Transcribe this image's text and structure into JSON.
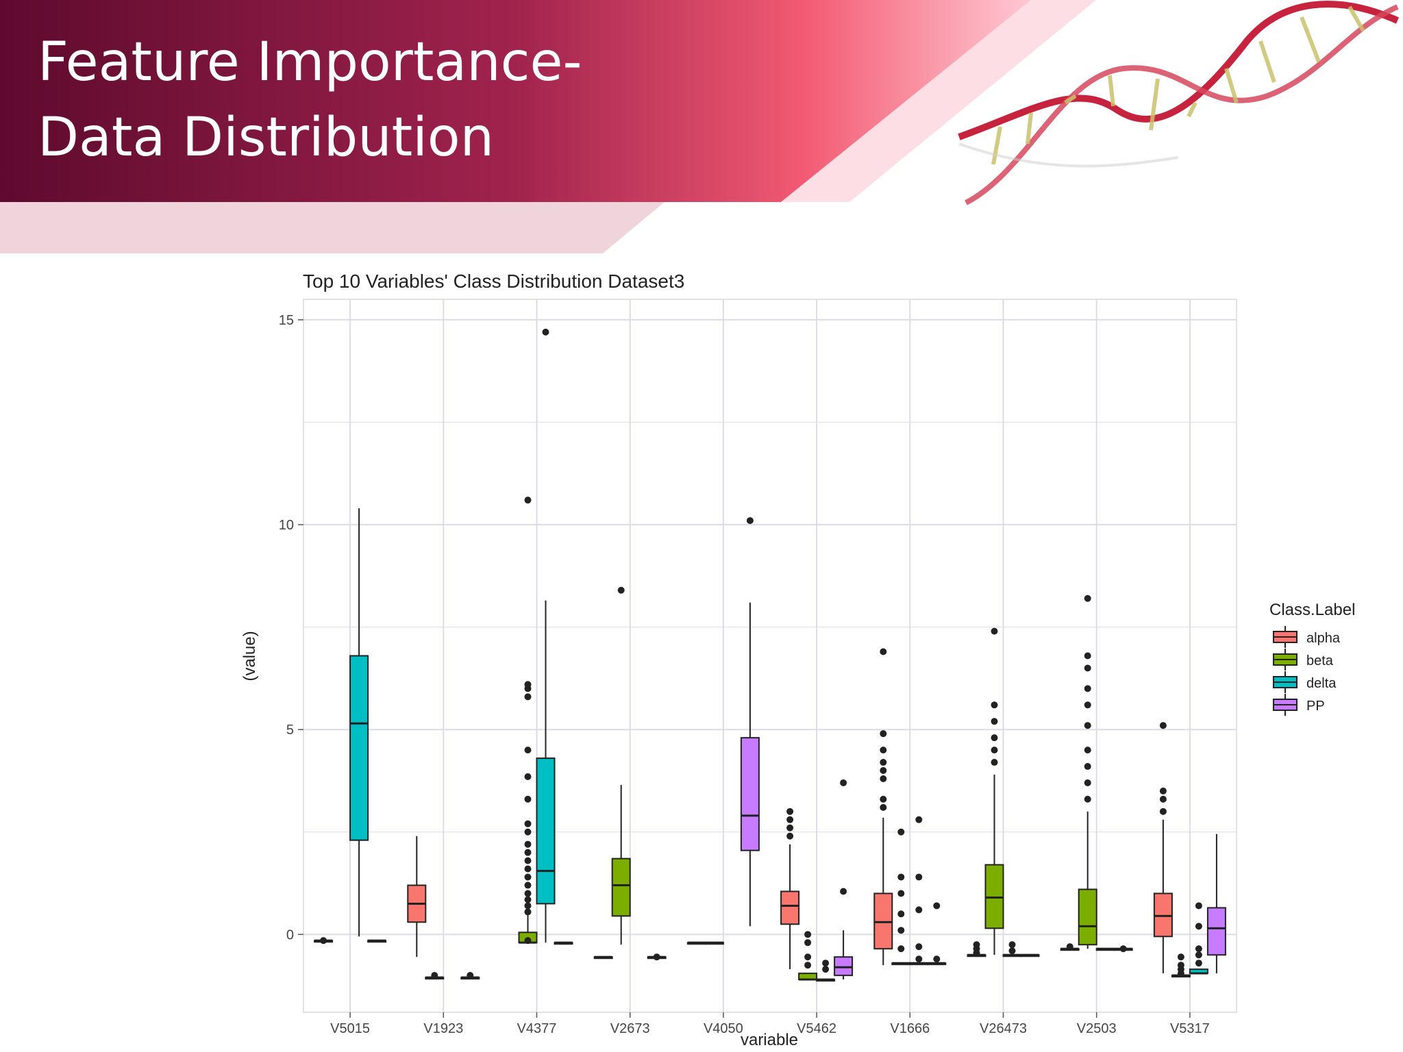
{
  "slide": {
    "title_line1": "Feature Importance-",
    "title_line2": "Data Distribution"
  },
  "colors": {
    "header_dark": "#5e0a2e",
    "header_mid": "#b02a52",
    "header_light": "#f25a72",
    "band_pink": "#efd4dc",
    "alpha": "#f8766d",
    "beta": "#7cae00",
    "delta": "#00bfc4",
    "PP": "#c77cff",
    "grid": "#dedae6"
  },
  "chart_data": {
    "type": "box",
    "title": "Top 10 Variables' Class Distribution Dataset3",
    "xlabel": "variable",
    "ylabel": "(value)",
    "ylim": [
      -1.9,
      15.5
    ],
    "yticks": [
      0,
      5,
      10,
      15
    ],
    "grid": true,
    "legend": {
      "title": "Class.Label",
      "position": "right",
      "entries": [
        "alpha",
        "beta",
        "delta",
        "PP"
      ]
    },
    "categories": [
      "V5015",
      "V1923",
      "V4377",
      "V2673",
      "V4050",
      "V5462",
      "V1666",
      "V26473",
      "V2503",
      "V5317"
    ],
    "boxes": [
      {
        "category": "V5015",
        "class": "alpha",
        "q1": -0.15,
        "median": -0.15,
        "q3": -0.15,
        "whisker_low": -0.15,
        "whisker_high": -0.15,
        "outliers": [
          -0.15
        ]
      },
      {
        "category": "V5015",
        "class": "delta",
        "q1": 2.3,
        "median": 5.15,
        "q3": 6.8,
        "whisker_low": -0.05,
        "whisker_high": 10.4,
        "outliers": []
      },
      {
        "category": "V5015",
        "class": "PP",
        "q1": -0.15,
        "median": -0.15,
        "q3": -0.15,
        "whisker_low": -0.15,
        "whisker_high": -0.15,
        "outliers": []
      },
      {
        "category": "V1923",
        "class": "alpha",
        "q1": 0.3,
        "median": 0.75,
        "q3": 1.2,
        "whisker_low": -0.55,
        "whisker_high": 2.4,
        "outliers": []
      },
      {
        "category": "V1923",
        "class": "beta",
        "q1": -1.05,
        "median": -1.05,
        "q3": -1.05,
        "whisker_low": -1.05,
        "whisker_high": -1.05,
        "outliers": [
          -1.0
        ]
      },
      {
        "category": "V1923",
        "class": "PP",
        "q1": -1.05,
        "median": -1.05,
        "q3": -1.05,
        "whisker_low": -1.05,
        "whisker_high": -1.05,
        "outliers": [
          -1.0
        ]
      },
      {
        "category": "V4377",
        "class": "beta",
        "q1": -0.2,
        "median": -0.2,
        "q3": 0.05,
        "whisker_low": -0.2,
        "whisker_high": 0.5,
        "outliers": [
          -0.15,
          0.55,
          0.7,
          0.85,
          1.0,
          1.2,
          1.4,
          1.6,
          1.8,
          2.0,
          2.2,
          2.5,
          2.7,
          3.3,
          3.85,
          4.5,
          5.8,
          6.0,
          6.1,
          10.6
        ]
      },
      {
        "category": "V4377",
        "class": "delta",
        "q1": 0.75,
        "median": 1.55,
        "q3": 4.3,
        "whisker_low": -0.2,
        "whisker_high": 8.15,
        "outliers": [
          14.7
        ]
      },
      {
        "category": "V4377",
        "class": "PP",
        "q1": -0.2,
        "median": -0.2,
        "q3": -0.2,
        "whisker_low": -0.2,
        "whisker_high": -0.2,
        "outliers": []
      },
      {
        "category": "V2673",
        "class": "alpha",
        "q1": -0.55,
        "median": -0.55,
        "q3": -0.55,
        "whisker_low": -0.55,
        "whisker_high": -0.55,
        "outliers": []
      },
      {
        "category": "V2673",
        "class": "beta",
        "q1": 0.45,
        "median": 1.2,
        "q3": 1.85,
        "whisker_low": -0.25,
        "whisker_high": 3.65,
        "outliers": [
          8.4
        ]
      },
      {
        "category": "V2673",
        "class": "PP",
        "q1": -0.55,
        "median": -0.55,
        "q3": -0.55,
        "whisker_low": -0.55,
        "whisker_high": -0.55,
        "outliers": [
          -0.55
        ]
      },
      {
        "category": "V4050",
        "class": "alpha",
        "q1": -0.2,
        "median": -0.2,
        "q3": -0.2,
        "whisker_low": -0.2,
        "whisker_high": -0.2,
        "outliers": []
      },
      {
        "category": "V4050",
        "class": "beta",
        "q1": -0.2,
        "median": -0.2,
        "q3": -0.2,
        "whisker_low": -0.2,
        "whisker_high": -0.2,
        "outliers": []
      },
      {
        "category": "V4050",
        "class": "PP",
        "q1": 2.05,
        "median": 2.9,
        "q3": 4.8,
        "whisker_low": 0.2,
        "whisker_high": 8.1,
        "outliers": [
          10.1
        ]
      },
      {
        "category": "V5462",
        "class": "alpha",
        "q1": 0.25,
        "median": 0.7,
        "q3": 1.05,
        "whisker_low": -0.85,
        "whisker_high": 2.2,
        "outliers": [
          2.4,
          2.6,
          2.8,
          3.0
        ]
      },
      {
        "category": "V5462",
        "class": "beta",
        "q1": -1.1,
        "median": -1.1,
        "q3": -0.95,
        "whisker_low": -1.1,
        "whisker_high": -0.95,
        "outliers": [
          -0.75,
          -0.55,
          -0.2,
          0.0
        ]
      },
      {
        "category": "V5462",
        "class": "delta",
        "q1": -1.1,
        "median": -1.1,
        "q3": -1.1,
        "whisker_low": -1.1,
        "whisker_high": -1.1,
        "outliers": [
          -0.85,
          -0.7
        ]
      },
      {
        "category": "V5462",
        "class": "PP",
        "q1": -1.0,
        "median": -0.8,
        "q3": -0.55,
        "whisker_low": -1.1,
        "whisker_high": 0.1,
        "outliers": [
          1.05,
          3.7
        ]
      },
      {
        "category": "V1666",
        "class": "alpha",
        "q1": -0.35,
        "median": 0.3,
        "q3": 1.0,
        "whisker_low": -0.75,
        "whisker_high": 2.85,
        "outliers": [
          3.1,
          3.3,
          3.8,
          4.0,
          4.2,
          4.5,
          4.9,
          6.9
        ]
      },
      {
        "category": "V1666",
        "class": "beta",
        "q1": -0.7,
        "median": -0.7,
        "q3": -0.7,
        "whisker_low": -0.7,
        "whisker_high": -0.7,
        "outliers": [
          -0.35,
          0.1,
          0.5,
          1.0,
          1.4,
          2.5
        ]
      },
      {
        "category": "V1666",
        "class": "delta",
        "q1": -0.7,
        "median": -0.7,
        "q3": -0.7,
        "whisker_low": -0.7,
        "whisker_high": -0.7,
        "outliers": [
          -0.6,
          -0.3,
          0.6,
          1.4,
          2.8
        ]
      },
      {
        "category": "V1666",
        "class": "PP",
        "q1": -0.7,
        "median": -0.7,
        "q3": -0.7,
        "whisker_low": -0.7,
        "whisker_high": -0.7,
        "outliers": [
          -0.6,
          0.7
        ]
      },
      {
        "category": "V26473",
        "class": "alpha",
        "q1": -0.5,
        "median": -0.5,
        "q3": -0.5,
        "whisker_low": -0.5,
        "whisker_high": -0.5,
        "outliers": [
          -0.45,
          -0.35,
          -0.25
        ]
      },
      {
        "category": "V26473",
        "class": "beta",
        "q1": 0.15,
        "median": 0.9,
        "q3": 1.7,
        "whisker_low": -0.5,
        "whisker_high": 3.9,
        "outliers": [
          4.2,
          4.5,
          4.8,
          5.2,
          5.6,
          7.4
        ]
      },
      {
        "category": "V26473",
        "class": "delta",
        "q1": -0.5,
        "median": -0.5,
        "q3": -0.5,
        "whisker_low": -0.5,
        "whisker_high": -0.5,
        "outliers": [
          -0.4,
          -0.25
        ]
      },
      {
        "category": "V26473",
        "class": "PP",
        "q1": -0.5,
        "median": -0.5,
        "q3": -0.5,
        "whisker_low": -0.5,
        "whisker_high": -0.5,
        "outliers": []
      },
      {
        "category": "V2503",
        "class": "alpha",
        "q1": -0.35,
        "median": -0.35,
        "q3": -0.35,
        "whisker_low": -0.35,
        "whisker_high": -0.35,
        "outliers": [
          -0.3
        ]
      },
      {
        "category": "V2503",
        "class": "beta",
        "q1": -0.25,
        "median": 0.2,
        "q3": 1.1,
        "whisker_low": -0.35,
        "whisker_high": 3.0,
        "outliers": [
          3.3,
          3.7,
          4.1,
          4.5,
          5.1,
          5.6,
          6.0,
          6.5,
          6.8,
          8.2
        ]
      },
      {
        "category": "V2503",
        "class": "delta",
        "q1": -0.35,
        "median": -0.35,
        "q3": -0.35,
        "whisker_low": -0.35,
        "whisker_high": -0.35,
        "outliers": []
      },
      {
        "category": "V2503",
        "class": "PP",
        "q1": -0.35,
        "median": -0.35,
        "q3": -0.35,
        "whisker_low": -0.35,
        "whisker_high": -0.35,
        "outliers": [
          -0.35
        ]
      },
      {
        "category": "V5317",
        "class": "alpha",
        "q1": -0.05,
        "median": 0.45,
        "q3": 1.0,
        "whisker_low": -0.95,
        "whisker_high": 2.8,
        "outliers": [
          3.0,
          3.3,
          3.5,
          5.1
        ]
      },
      {
        "category": "V5317",
        "class": "beta",
        "q1": -1.0,
        "median": -1.0,
        "q3": -1.0,
        "whisker_low": -1.0,
        "whisker_high": -1.0,
        "outliers": [
          -0.95,
          -0.85,
          -0.75,
          -0.55
        ]
      },
      {
        "category": "V5317",
        "class": "delta",
        "q1": -0.95,
        "median": -0.95,
        "q3": -0.85,
        "whisker_low": -0.95,
        "whisker_high": -0.85,
        "outliers": [
          -0.7,
          -0.5,
          -0.35,
          0.2,
          0.7
        ]
      },
      {
        "category": "V5317",
        "class": "PP",
        "q1": -0.5,
        "median": 0.15,
        "q3": 0.65,
        "whisker_low": -0.95,
        "whisker_high": 2.45,
        "outliers": []
      }
    ]
  }
}
